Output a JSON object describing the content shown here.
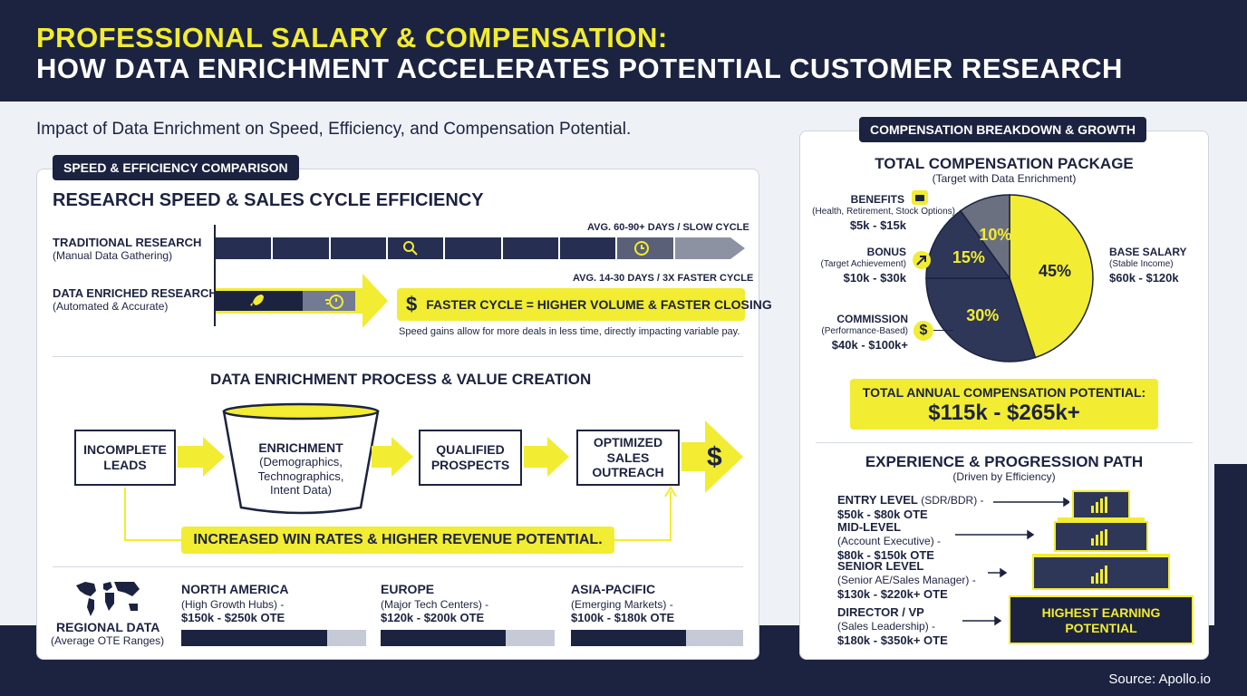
{
  "header": {
    "title_line1": "PROFESSIONAL SALARY & COMPENSATION:",
    "title_line2": "HOW DATA ENRICHMENT ACCELERATES POTENTIAL CUSTOMER RESEARCH"
  },
  "subtitle": "Impact of Data Enrichment on Speed, Efficiency, and Compensation Potential.",
  "source": "Source: Apollo.io",
  "speed": {
    "pill": "SPEED & EFFICIENCY COMPARISON",
    "heading": "RESEARCH SPEED & SALES CYCLE EFFICIENCY",
    "traditional": {
      "title": "TRADITIONAL RESEARCH",
      "sub": "(Manual Data Gathering)",
      "avg": "AVG. 60-90+ DAYS / SLOW CYCLE"
    },
    "enriched": {
      "title": "DATA ENRICHED RESEARCH",
      "sub": "(Automated & Accurate)",
      "avg": "AVG. 14-30 DAYS / 3X FASTER CYCLE"
    },
    "callout": "FASTER CYCLE = HIGHER VOLUME & FASTER CLOSING",
    "callout_icon": "$",
    "note": "Speed gains allow for more deals in less time, directly impacting variable pay."
  },
  "process": {
    "heading": "DATA ENRICHMENT PROCESS & VALUE CREATION",
    "step1": "INCOMPLETE LEADS",
    "step2_title": "ENRICHMENT",
    "step2_sub": "(Demographics, Technographics, Intent Data)",
    "step3": "QUALIFIED PROSPECTS",
    "step4": "OPTIMIZED SALES OUTREACH",
    "end_icon": "$",
    "banner": "INCREASED WIN RATES & HIGHER REVENUE POTENTIAL."
  },
  "regional": {
    "label": "REGIONAL DATA",
    "sub": "(Average OTE Ranges)",
    "regions": [
      {
        "name": "NORTH AMERICA",
        "sub": "(High Growth Hubs) -",
        "range": "$150k - $250k OTE",
        "fill": 0.79
      },
      {
        "name": "EUROPE",
        "sub": "(Major Tech Centers) -",
        "range": "$120k - $200k OTE",
        "fill": 0.72
      },
      {
        "name": "ASIA-PACIFIC",
        "sub": "(Emerging Markets) -",
        "range": "$100k - $180k OTE",
        "fill": 0.67
      }
    ]
  },
  "compensation": {
    "pill": "COMPENSATION BREAKDOWN & GROWTH",
    "heading": "TOTAL COMPENSATION PACKAGE",
    "sub": "(Target with Data Enrichment)",
    "benefits": {
      "title": "BENEFITS",
      "sub": "(Health, Retirement, Stock Options)",
      "range": "$5k - $15k"
    },
    "bonus": {
      "title": "BONUS",
      "sub": "(Target Achievement)",
      "range": "$10k - $30k"
    },
    "commission": {
      "title": "COMMISSION",
      "sub": "(Performance-Based)",
      "range": "$40k - $100k+"
    },
    "base": {
      "title": "BASE SALARY",
      "sub": "(Stable Income)",
      "range": "$60k - $120k"
    },
    "total_label": "TOTAL ANNUAL COMPENSATION POTENTIAL:",
    "total_value": "$115k - $265k+",
    "colors": {
      "navy": "#1c2340",
      "slate": "#2f3758",
      "gray": "#6b7080",
      "yellow": "#f2ec32"
    }
  },
  "chart_data": {
    "type": "pie",
    "title": "TOTAL COMPENSATION PACKAGE",
    "subtitle": "(Target with Data Enrichment)",
    "slices": [
      {
        "label": "BASE SALARY",
        "value": 45
      },
      {
        "label": "COMMISSION",
        "value": 30
      },
      {
        "label": "BONUS",
        "value": 15
      },
      {
        "label": "BENEFITS",
        "value": 10
      }
    ],
    "value_labels": [
      "45%",
      "30%",
      "15%",
      "10%"
    ]
  },
  "experience": {
    "heading": "EXPERIENCE & PROGRESSION PATH",
    "sub": "(Driven by Efficiency)",
    "levels": [
      {
        "title": "ENTRY LEVEL",
        "sub": "(SDR/BDR) -",
        "range": "$50k - $80k OTE"
      },
      {
        "title": "MID-LEVEL",
        "sub": "(Account Executive) -",
        "range": "$80k - $150k OTE"
      },
      {
        "title": "SENIOR LEVEL",
        "sub": "(Senior AE/Sales Manager) -",
        "range": "$130k - $220k+ OTE"
      },
      {
        "title": "DIRECTOR / VP",
        "sub": "(Sales Leadership) -",
        "range": "$180k - $350k+ OTE"
      }
    ],
    "pyramid_base_label": "HIGHEST EARNING POTENTIAL"
  }
}
